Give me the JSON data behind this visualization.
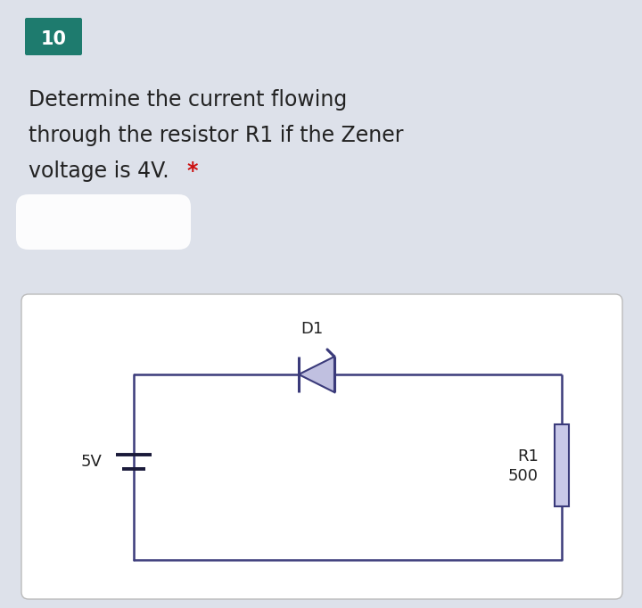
{
  "bg_color": "#dde1ea",
  "circuit_bg": "#ffffff",
  "question_number": "10",
  "question_number_bg": "#1e7b6e",
  "question_text_line1": "Determine the current flowing",
  "question_text_line2": "through the resistor R1 if the Zener",
  "question_text_line3": "voltage is 4V.",
  "asterisk": "*",
  "asterisk_color": "#cc1111",
  "text_color": "#222222",
  "circuit_wire_color": "#3a3a7a",
  "diode_fill_color": "#c0c0e0",
  "diode_edge_color": "#3a3a7a",
  "resistor_fill_color": "#c8c8e8",
  "resistor_edge_color": "#3a3a7a",
  "battery_color": "#1a1a3a",
  "label_D1": "D1",
  "label_R1": "R1",
  "label_500": "500",
  "label_5V": "5V",
  "fig_width": 7.2,
  "fig_height": 6.82
}
